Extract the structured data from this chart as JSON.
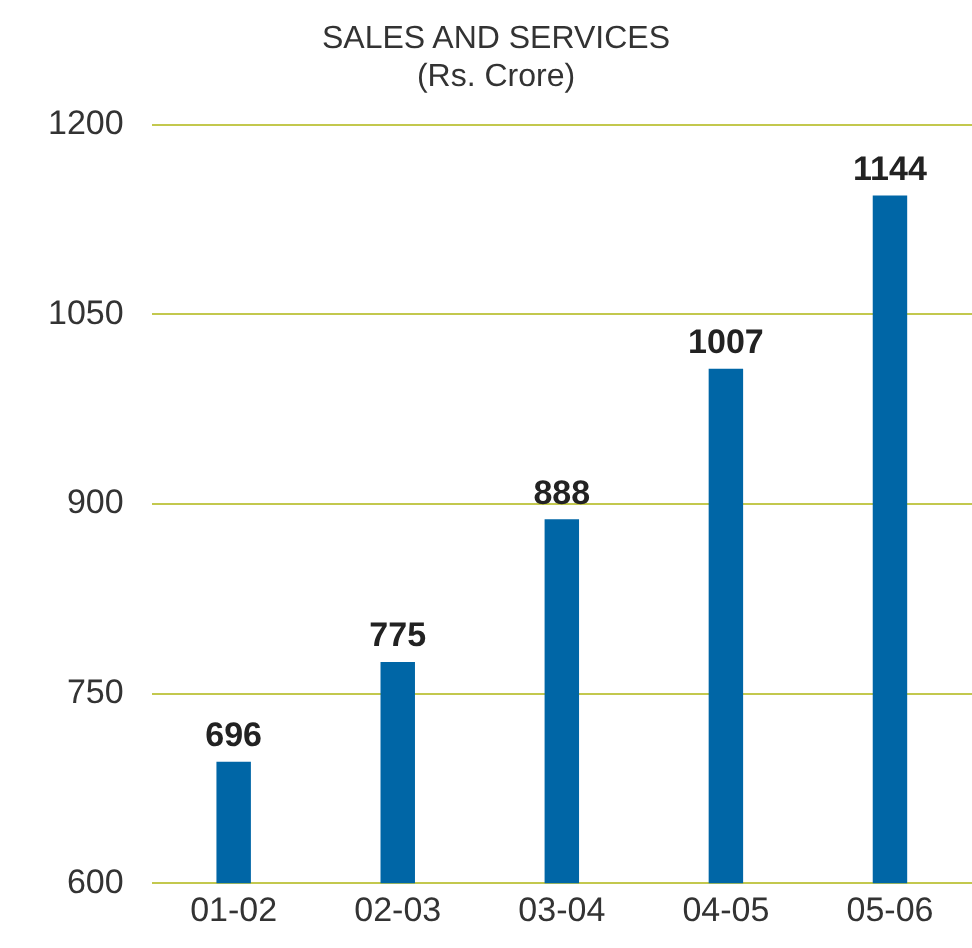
{
  "chart_data": {
    "type": "bar",
    "title": "SALES AND SERVICES",
    "subtitle": "(Rs. Crore)",
    "categories": [
      "01-02",
      "02-03",
      "03-04",
      "04-05",
      "05-06"
    ],
    "values": [
      696,
      775,
      888,
      1007,
      1144
    ],
    "color": "#0066a6",
    "ylim": [
      600,
      1200
    ],
    "yticks": [
      600,
      750,
      900,
      1050,
      1200
    ],
    "grid": "y",
    "data_labels": true,
    "legend": false
  }
}
